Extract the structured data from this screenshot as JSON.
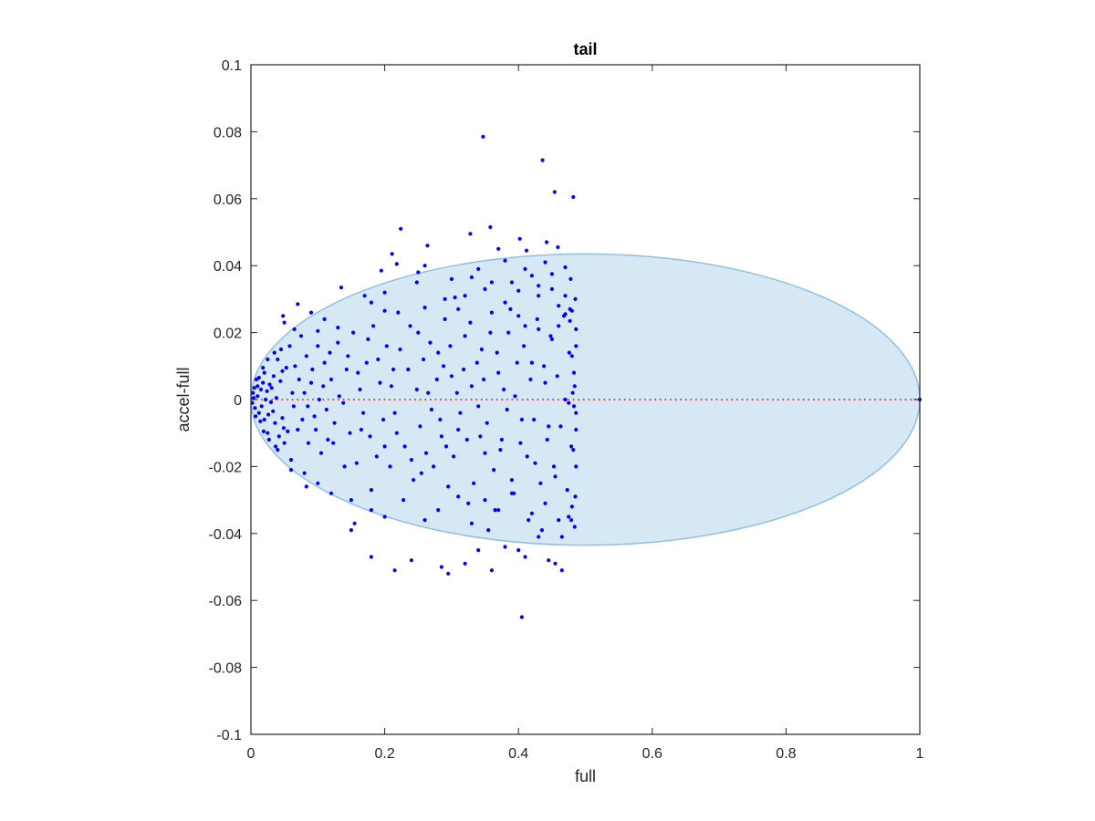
{
  "chart_data": {
    "type": "scatter",
    "title": "tail",
    "xlabel": "full",
    "ylabel": "accel-full",
    "xlim": [
      0,
      1
    ],
    "ylim": [
      -0.1,
      0.1
    ],
    "xticks": [
      0,
      0.2,
      0.4,
      0.6,
      0.8,
      1
    ],
    "xtick_labels": [
      "0",
      "0.2",
      "0.4",
      "0.6",
      "0.8",
      "1"
    ],
    "yticks": [
      0.1,
      0.08,
      0.06,
      0.04,
      0.02,
      0,
      -0.02,
      -0.04,
      -0.06,
      -0.08,
      -0.1
    ],
    "ytick_labels": [
      "0.1",
      "0.08",
      "0.06",
      "0.04",
      "0.02",
      "0",
      "-0.02",
      "-0.04",
      "-0.06",
      "-0.08",
      "-0.1"
    ],
    "grid": false,
    "box": true,
    "ellipse": {
      "center_x": 0.5,
      "center_y": 0,
      "semi_x": 0.5,
      "semi_y": 0.0435,
      "fill": "#d6e8f4",
      "edge": "#8fc0e2"
    },
    "reference_line": {
      "y": 0,
      "style": "dotted",
      "color": "#ff0000"
    },
    "marker_color": "#0000ff",
    "points": [
      [
        0.347,
        0.0785
      ],
      [
        0.436,
        0.0715
      ],
      [
        0.454,
        0.062
      ],
      [
        0.482,
        0.0605
      ],
      [
        0.224,
        0.051
      ],
      [
        0.358,
        0.0515
      ],
      [
        0.328,
        0.0495
      ],
      [
        0.402,
        0.048
      ],
      [
        0.442,
        0.047
      ],
      [
        0.264,
        0.046
      ],
      [
        0.37,
        0.045
      ],
      [
        0.412,
        0.0445
      ],
      [
        0.459,
        0.0455
      ],
      [
        0.211,
        0.0435
      ],
      [
        0.195,
        0.0385
      ],
      [
        0.218,
        0.0405
      ],
      [
        0.26,
        0.04
      ],
      [
        0.38,
        0.0415
      ],
      [
        0.44,
        0.041
      ],
      [
        0.47,
        0.0395
      ],
      [
        0.248,
        0.035
      ],
      [
        0.33,
        0.0365
      ],
      [
        0.45,
        0.0375
      ],
      [
        0.35,
        0.033
      ],
      [
        0.43,
        0.034
      ],
      [
        0.135,
        0.0335
      ],
      [
        0.305,
        0.0305
      ],
      [
        0.4,
        0.0325
      ],
      [
        0.47,
        0.0255
      ],
      [
        0.48,
        0.0265
      ],
      [
        0.477,
        0.0235
      ],
      [
        0.477,
        0.027
      ],
      [
        0.07,
        0.0285
      ],
      [
        0.048,
        0.025
      ],
      [
        0.05,
        0.023
      ],
      [
        0.2,
        0.0265
      ],
      [
        0.38,
        0.029
      ],
      [
        0.26,
        0.0275
      ],
      [
        0.13,
        0.0215
      ],
      [
        0.1,
        0.0205
      ],
      [
        0.02,
        0.008
      ],
      [
        0.018,
        0.005
      ],
      [
        0.015,
        0.003
      ],
      [
        0.01,
        0.001
      ],
      [
        0.022,
        0.0
      ],
      [
        0.016,
        -0.002
      ],
      [
        0.012,
        -0.004
      ],
      [
        0.02,
        -0.006
      ],
      [
        0.008,
        0.006
      ],
      [
        0.005,
        0.0035
      ],
      [
        0.004,
        0.0005
      ],
      [
        0.006,
        -0.0025
      ],
      [
        0.024,
        0.0025
      ],
      [
        0.03,
        -0.0008
      ],
      [
        0.028,
        0.0045
      ],
      [
        0.026,
        -0.0045
      ],
      [
        0.034,
        0.007
      ],
      [
        0.036,
        -0.007
      ],
      [
        0.04,
        0.012
      ],
      [
        0.042,
        -0.011
      ],
      [
        0.045,
        0.015
      ],
      [
        0.05,
        -0.013
      ],
      [
        0.058,
        0.016
      ],
      [
        0.06,
        -0.018
      ],
      [
        0.066,
        0.01
      ],
      [
        0.07,
        -0.009
      ],
      [
        0.075,
        0.019
      ],
      [
        0.08,
        -0.022
      ],
      [
        0.09,
        0.005
      ],
      [
        0.095,
        -0.005
      ],
      [
        0.1,
        0.016
      ],
      [
        0.105,
        -0.016
      ],
      [
        0.11,
        0.011
      ],
      [
        0.115,
        -0.012
      ],
      [
        0.12,
        0.006
      ],
      [
        0.125,
        -0.007
      ],
      [
        0.13,
        0.017
      ],
      [
        0.14,
        -0.02
      ],
      [
        0.145,
        0.013
      ],
      [
        0.15,
        -0.03
      ],
      [
        0.16,
        0.008
      ],
      [
        0.165,
        -0.009
      ],
      [
        0.175,
        0.018
      ],
      [
        0.18,
        -0.027
      ],
      [
        0.19,
        0.012
      ],
      [
        0.2,
        -0.014
      ],
      [
        0.21,
        0.004
      ],
      [
        0.215,
        -0.004
      ],
      [
        0.22,
        0.026
      ],
      [
        0.228,
        -0.03
      ],
      [
        0.235,
        0.009
      ],
      [
        0.24,
        -0.018
      ],
      [
        0.25,
        0.02
      ],
      [
        0.255,
        -0.022
      ],
      [
        0.265,
        0.002
      ],
      [
        0.27,
        -0.003
      ],
      [
        0.28,
        0.014
      ],
      [
        0.285,
        -0.011
      ],
      [
        0.29,
        0.024
      ],
      [
        0.295,
        -0.026
      ],
      [
        0.3,
        0.007
      ],
      [
        0.31,
        -0.009
      ],
      [
        0.32,
        0.019
      ],
      [
        0.325,
        -0.031
      ],
      [
        0.33,
        0.004
      ],
      [
        0.34,
        -0.002
      ],
      [
        0.345,
        0.015
      ],
      [
        0.35,
        -0.016
      ],
      [
        0.36,
        0.026
      ],
      [
        0.365,
        -0.033
      ],
      [
        0.37,
        0.008
      ],
      [
        0.375,
        -0.012
      ],
      [
        0.385,
        0.02
      ],
      [
        0.39,
        -0.024
      ],
      [
        0.395,
        0.001
      ],
      [
        0.405,
        -0.006
      ],
      [
        0.41,
        0.022
      ],
      [
        0.415,
        -0.036
      ],
      [
        0.42,
        0.011
      ],
      [
        0.425,
        -0.019
      ],
      [
        0.43,
        0.031
      ],
      [
        0.435,
        -0.039
      ],
      [
        0.44,
        0.005
      ],
      [
        0.445,
        -0.008
      ],
      [
        0.45,
        0.018
      ],
      [
        0.455,
        -0.023
      ],
      [
        0.46,
        0.028
      ],
      [
        0.465,
        -0.041
      ],
      [
        0.47,
        0.0
      ],
      [
        0.475,
        -0.001
      ],
      [
        0.48,
        0.013
      ],
      [
        0.482,
        -0.015
      ],
      [
        0.484,
        0.004
      ],
      [
        0.486,
        -0.004
      ],
      [
        0.486,
        0.021
      ],
      [
        0.485,
        -0.029
      ],
      [
        0.485,
        0.03
      ],
      [
        0.484,
        -0.038
      ],
      [
        0.483,
        0.008
      ],
      [
        0.486,
        -0.009
      ],
      [
        0.478,
        0.036
      ],
      [
        0.479,
        -0.036
      ],
      [
        0.486,
        0.016
      ],
      [
        0.486,
        -0.02
      ],
      [
        0.012,
        0.0065
      ],
      [
        0.014,
        -0.0065
      ],
      [
        0.018,
        0.0095
      ],
      [
        0.019,
        -0.0095
      ],
      [
        0.031,
        0.0035
      ],
      [
        0.033,
        -0.0035
      ],
      [
        0.038,
        0.0005
      ],
      [
        0.044,
        0.0055
      ],
      [
        0.047,
        -0.0055
      ],
      [
        0.053,
        0.0095
      ],
      [
        0.055,
        -0.0095
      ],
      [
        0.062,
        0.002
      ],
      [
        0.064,
        -0.002
      ],
      [
        0.072,
        0.006
      ],
      [
        0.077,
        -0.006
      ],
      [
        0.083,
        0.013
      ],
      [
        0.086,
        -0.013
      ],
      [
        0.092,
        0.009
      ],
      [
        0.097,
        -0.009
      ],
      [
        0.102,
        0.0
      ],
      [
        0.108,
        0.004
      ],
      [
        0.113,
        -0.003
      ],
      [
        0.118,
        0.014
      ],
      [
        0.123,
        -0.013
      ],
      [
        0.132,
        0.001
      ],
      [
        0.138,
        -0.001
      ],
      [
        0.143,
        0.009
      ],
      [
        0.148,
        -0.01
      ],
      [
        0.153,
        0.02
      ],
      [
        0.158,
        -0.019
      ],
      [
        0.163,
        0.003
      ],
      [
        0.168,
        -0.004
      ],
      [
        0.173,
        0.011
      ],
      [
        0.178,
        -0.011
      ],
      [
        0.183,
        0.022
      ],
      [
        0.188,
        -0.017
      ],
      [
        0.193,
        0.005
      ],
      [
        0.198,
        -0.006
      ],
      [
        0.203,
        0.016
      ],
      [
        0.208,
        -0.02
      ],
      [
        0.213,
        0.009
      ],
      [
        0.218,
        -0.01
      ],
      [
        0.223,
        0.015
      ],
      [
        0.23,
        -0.014
      ],
      [
        0.238,
        0.022
      ],
      [
        0.243,
        -0.024
      ],
      [
        0.248,
        0.003
      ],
      [
        0.253,
        -0.008
      ],
      [
        0.258,
        0.012
      ],
      [
        0.262,
        -0.016
      ],
      [
        0.268,
        0.017
      ],
      [
        0.273,
        -0.02
      ],
      [
        0.278,
        0.006
      ],
      [
        0.283,
        -0.006
      ],
      [
        0.288,
        0.01
      ],
      [
        0.292,
        -0.014
      ],
      [
        0.298,
        0.016
      ],
      [
        0.303,
        -0.017
      ],
      [
        0.308,
        0.002
      ],
      [
        0.313,
        -0.004
      ],
      [
        0.318,
        0.009
      ],
      [
        0.323,
        -0.012
      ],
      [
        0.328,
        0.023
      ],
      [
        0.333,
        -0.025
      ],
      [
        0.338,
        0.011
      ],
      [
        0.343,
        -0.011
      ],
      [
        0.348,
        0.006
      ],
      [
        0.353,
        -0.007
      ],
      [
        0.358,
        0.02
      ],
      [
        0.363,
        -0.021
      ],
      [
        0.368,
        0.014
      ],
      [
        0.373,
        -0.015
      ],
      [
        0.378,
        0.003
      ],
      [
        0.383,
        -0.003
      ],
      [
        0.388,
        0.027
      ],
      [
        0.393,
        -0.028
      ],
      [
        0.398,
        0.011
      ],
      [
        0.403,
        -0.013
      ],
      [
        0.408,
        0.016
      ],
      [
        0.413,
        -0.017
      ],
      [
        0.418,
        0.006
      ],
      [
        0.423,
        -0.006
      ],
      [
        0.428,
        0.024
      ],
      [
        0.433,
        -0.025
      ],
      [
        0.438,
        0.01
      ],
      [
        0.443,
        -0.012
      ],
      [
        0.448,
        0.019
      ],
      [
        0.453,
        -0.02
      ],
      [
        0.458,
        0.007
      ],
      [
        0.463,
        -0.008
      ],
      [
        0.468,
        0.025
      ],
      [
        0.473,
        -0.027
      ],
      [
        0.476,
        0.014
      ],
      [
        0.479,
        -0.014
      ],
      [
        0.481,
        0.002
      ],
      [
        0.483,
        -0.002
      ],
      [
        0.15,
        -0.039
      ],
      [
        0.155,
        -0.037
      ],
      [
        0.18,
        -0.047
      ],
      [
        0.215,
        -0.051
      ],
      [
        0.24,
        -0.048
      ],
      [
        0.285,
        -0.05
      ],
      [
        0.295,
        -0.052
      ],
      [
        0.32,
        -0.049
      ],
      [
        0.34,
        -0.045
      ],
      [
        0.355,
        -0.039
      ],
      [
        0.36,
        -0.051
      ],
      [
        0.38,
        -0.044
      ],
      [
        0.4,
        -0.045
      ],
      [
        0.405,
        -0.065
      ],
      [
        0.41,
        -0.047
      ],
      [
        0.43,
        -0.041
      ],
      [
        0.445,
        -0.048
      ],
      [
        0.455,
        -0.049
      ],
      [
        0.465,
        -0.051
      ],
      [
        0.475,
        -0.035
      ],
      [
        0.2,
        -0.035
      ],
      [
        0.18,
        -0.033
      ],
      [
        0.12,
        -0.028
      ],
      [
        0.1,
        -0.025
      ],
      [
        0.083,
        -0.026
      ],
      [
        0.06,
        -0.021
      ],
      [
        0.04,
        -0.015
      ],
      [
        0.025,
        -0.01
      ],
      [
        0.065,
        0.021
      ],
      [
        0.09,
        0.026
      ],
      [
        0.11,
        0.024
      ],
      [
        0.17,
        0.031
      ],
      [
        0.18,
        0.029
      ],
      [
        0.2,
        0.032
      ],
      [
        0.29,
        0.03
      ],
      [
        0.32,
        0.031
      ],
      [
        0.31,
        0.027
      ],
      [
        0.4,
        0.025
      ],
      [
        0.46,
        0.022
      ],
      [
        0.43,
        0.021
      ],
      [
        0.39,
        0.035
      ],
      [
        0.42,
        0.037
      ],
      [
        0.45,
        0.033
      ],
      [
        0.47,
        0.031
      ],
      [
        0.08,
        0.002
      ],
      [
        0.085,
        -0.002
      ],
      [
        0.047,
        0.0085
      ],
      [
        0.049,
        -0.0085
      ],
      [
        0.025,
        0.012
      ],
      [
        0.027,
        -0.012
      ],
      [
        0.035,
        0.014
      ],
      [
        0.037,
        -0.014
      ],
      [
        0.01,
        0.004
      ],
      [
        0.007,
        -0.005
      ],
      [
        0.003,
        0.002
      ],
      [
        0.002,
        -0.001
      ],
      [
        0.26,
        -0.036
      ],
      [
        0.28,
        -0.033
      ],
      [
        0.31,
        -0.029
      ],
      [
        0.33,
        -0.037
      ],
      [
        0.35,
        -0.03
      ],
      [
        0.37,
        -0.033
      ],
      [
        0.39,
        -0.028
      ],
      [
        0.42,
        -0.034
      ],
      [
        0.44,
        -0.031
      ],
      [
        0.46,
        -0.036
      ],
      [
        0.48,
        -0.032
      ],
      [
        0.25,
        0.038
      ],
      [
        0.3,
        0.036
      ],
      [
        0.34,
        0.039
      ],
      [
        0.36,
        0.035
      ],
      [
        0.41,
        0.039
      ],
      [
        1.0,
        0.0
      ]
    ]
  }
}
